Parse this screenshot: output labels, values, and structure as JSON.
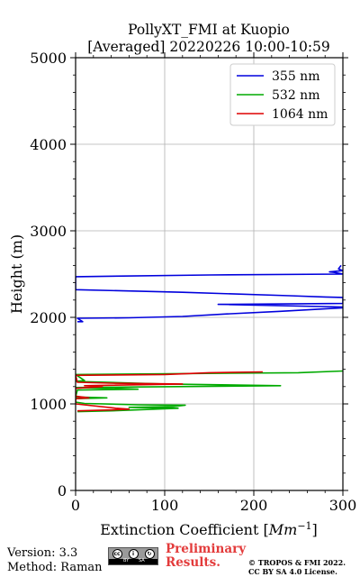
{
  "chart_data": {
    "type": "line",
    "title": "PollyXT_FMI at Kuopio",
    "subtitle": "[Averaged] 20220226 10:00-10:59",
    "xlabel": "Extinction Coefficient",
    "xlabel_unit": "Mm",
    "xlabel_unit_exp": "−1",
    "ylabel": "Height (m)",
    "xlim": [
      0,
      300
    ],
    "ylim": [
      0,
      5000
    ],
    "xticks": [
      0,
      100,
      200,
      300
    ],
    "yticks": [
      0,
      1000,
      2000,
      3000,
      4000,
      5000
    ],
    "grid": true,
    "legend_position": "top-right",
    "series": [
      {
        "name": "355 nm",
        "color": "#0000dd",
        "points": [
          [
            2,
            1950
          ],
          [
            8,
            1950
          ],
          [
            2,
            1990
          ],
          [
            60,
            1995
          ],
          [
            120,
            2010
          ],
          [
            170,
            2040
          ],
          [
            230,
            2070
          ],
          [
            300,
            2110
          ],
          [
            300,
            2120
          ],
          [
            160,
            2150
          ],
          [
            300,
            2160
          ],
          [
            300,
            2230
          ],
          [
            280,
            2235
          ],
          [
            240,
            2250
          ],
          [
            120,
            2290
          ],
          [
            0,
            2320
          ],
          [
            0,
            2470
          ],
          [
            150,
            2490
          ],
          [
            300,
            2500
          ],
          [
            290,
            2520
          ],
          [
            285,
            2525
          ],
          [
            300,
            2540
          ],
          [
            295,
            2560
          ],
          [
            298,
            2600
          ]
        ]
      },
      {
        "name": "532 nm",
        "color": "#00aa00",
        "points": [
          [
            2,
            910
          ],
          [
            40,
            920
          ],
          [
            80,
            935
          ],
          [
            115,
            950
          ],
          [
            60,
            960
          ],
          [
            110,
            970
          ],
          [
            123,
            985
          ],
          [
            70,
            990
          ],
          [
            10,
            1005
          ],
          [
            0,
            1020
          ],
          [
            0,
            1060
          ],
          [
            35,
            1070
          ],
          [
            0,
            1080
          ],
          [
            2,
            1160
          ],
          [
            70,
            1170
          ],
          [
            40,
            1180
          ],
          [
            0,
            1190
          ],
          [
            230,
            1210
          ],
          [
            100,
            1230
          ],
          [
            0,
            1260
          ],
          [
            10,
            1270
          ],
          [
            0,
            1340
          ],
          [
            120,
            1350
          ],
          [
            250,
            1360
          ],
          [
            300,
            1380
          ]
        ]
      },
      {
        "name": "1064 nm",
        "color": "#dd0000",
        "points": [
          [
            2,
            920
          ],
          [
            40,
            930
          ],
          [
            60,
            940
          ],
          [
            45,
            950
          ],
          [
            0,
            1000
          ],
          [
            0,
            1060
          ],
          [
            15,
            1070
          ],
          [
            0,
            1090
          ],
          [
            0,
            1180
          ],
          [
            30,
            1200
          ],
          [
            10,
            1210
          ],
          [
            120,
            1230
          ],
          [
            40,
            1240
          ],
          [
            2,
            1250
          ],
          [
            0,
            1330
          ],
          [
            100,
            1340
          ],
          [
            150,
            1360
          ],
          [
            210,
            1370
          ]
        ]
      }
    ]
  },
  "footer": {
    "version": "Version: 3.3",
    "method": "Method: Raman",
    "preliminary_line1": "Preliminary",
    "preliminary_line2": "Results.",
    "license_line1": "© TROPOS & FMI 2022.",
    "license_line2": "CC BY SA 4.0 License.",
    "badge_cc": "cc",
    "badge_by": "BY",
    "badge_sa": "SA"
  }
}
